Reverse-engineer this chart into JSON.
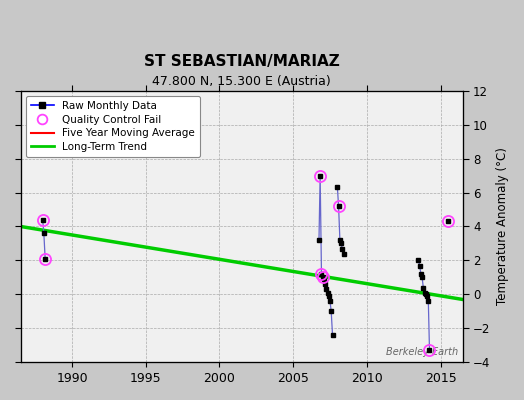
{
  "title": "ST SEBASTIAN/MARIAZ",
  "subtitle": "47.800 N, 15.300 E (Austria)",
  "ylabel": "Temperature Anomaly (°C)",
  "watermark": "Berkeley Earth",
  "xlim": [
    1986.5,
    2016.5
  ],
  "ylim": [
    -4,
    12
  ],
  "yticks": [
    -4,
    -2,
    0,
    2,
    4,
    6,
    8,
    10,
    12
  ],
  "xticks": [
    1990,
    1995,
    2000,
    2005,
    2010,
    2015
  ],
  "bg_color": "#f0f0f0",
  "fig_color": "#c8c8c8",
  "connected_segments": [
    [
      [
        1988.0,
        4.4
      ],
      [
        1988.08,
        3.6
      ],
      [
        1988.17,
        2.1
      ]
    ],
    [
      [
        2006.75,
        3.2
      ],
      [
        2006.83,
        7.0
      ],
      [
        2006.92,
        1.2
      ],
      [
        2007.0,
        1.0
      ],
      [
        2007.08,
        0.9
      ],
      [
        2007.17,
        0.6
      ],
      [
        2007.25,
        0.3
      ],
      [
        2007.33,
        0.1
      ],
      [
        2007.42,
        -0.1
      ],
      [
        2007.5,
        -0.4
      ],
      [
        2007.58,
        -1.0
      ],
      [
        2007.67,
        -2.4
      ]
    ],
    [
      [
        2008.0,
        6.3
      ],
      [
        2008.08,
        5.2
      ],
      [
        2008.17,
        3.2
      ],
      [
        2008.25,
        3.0
      ],
      [
        2008.33,
        2.7
      ],
      [
        2008.42,
        2.4
      ]
    ],
    [
      [
        2013.5,
        2.0
      ],
      [
        2013.58,
        1.7
      ],
      [
        2013.67,
        1.2
      ],
      [
        2013.75,
        1.0
      ],
      [
        2013.83,
        0.4
      ],
      [
        2013.92,
        0.1
      ],
      [
        2014.0,
        0.0
      ],
      [
        2014.08,
        -0.1
      ],
      [
        2014.17,
        -0.4
      ],
      [
        2014.25,
        -3.3
      ]
    ]
  ],
  "qc_fail": [
    [
      1988.0,
      4.4
    ],
    [
      1988.17,
      2.1
    ],
    [
      2006.83,
      7.0
    ],
    [
      2006.92,
      1.2
    ],
    [
      2007.0,
      1.0
    ],
    [
      2008.08,
      5.2
    ],
    [
      2014.25,
      -3.3
    ],
    [
      2015.5,
      4.3
    ]
  ],
  "lone_points": [
    [
      2015.5,
      4.3
    ]
  ],
  "trend_x": [
    1986.5,
    2016.5
  ],
  "trend_y": [
    4.0,
    -0.3
  ]
}
